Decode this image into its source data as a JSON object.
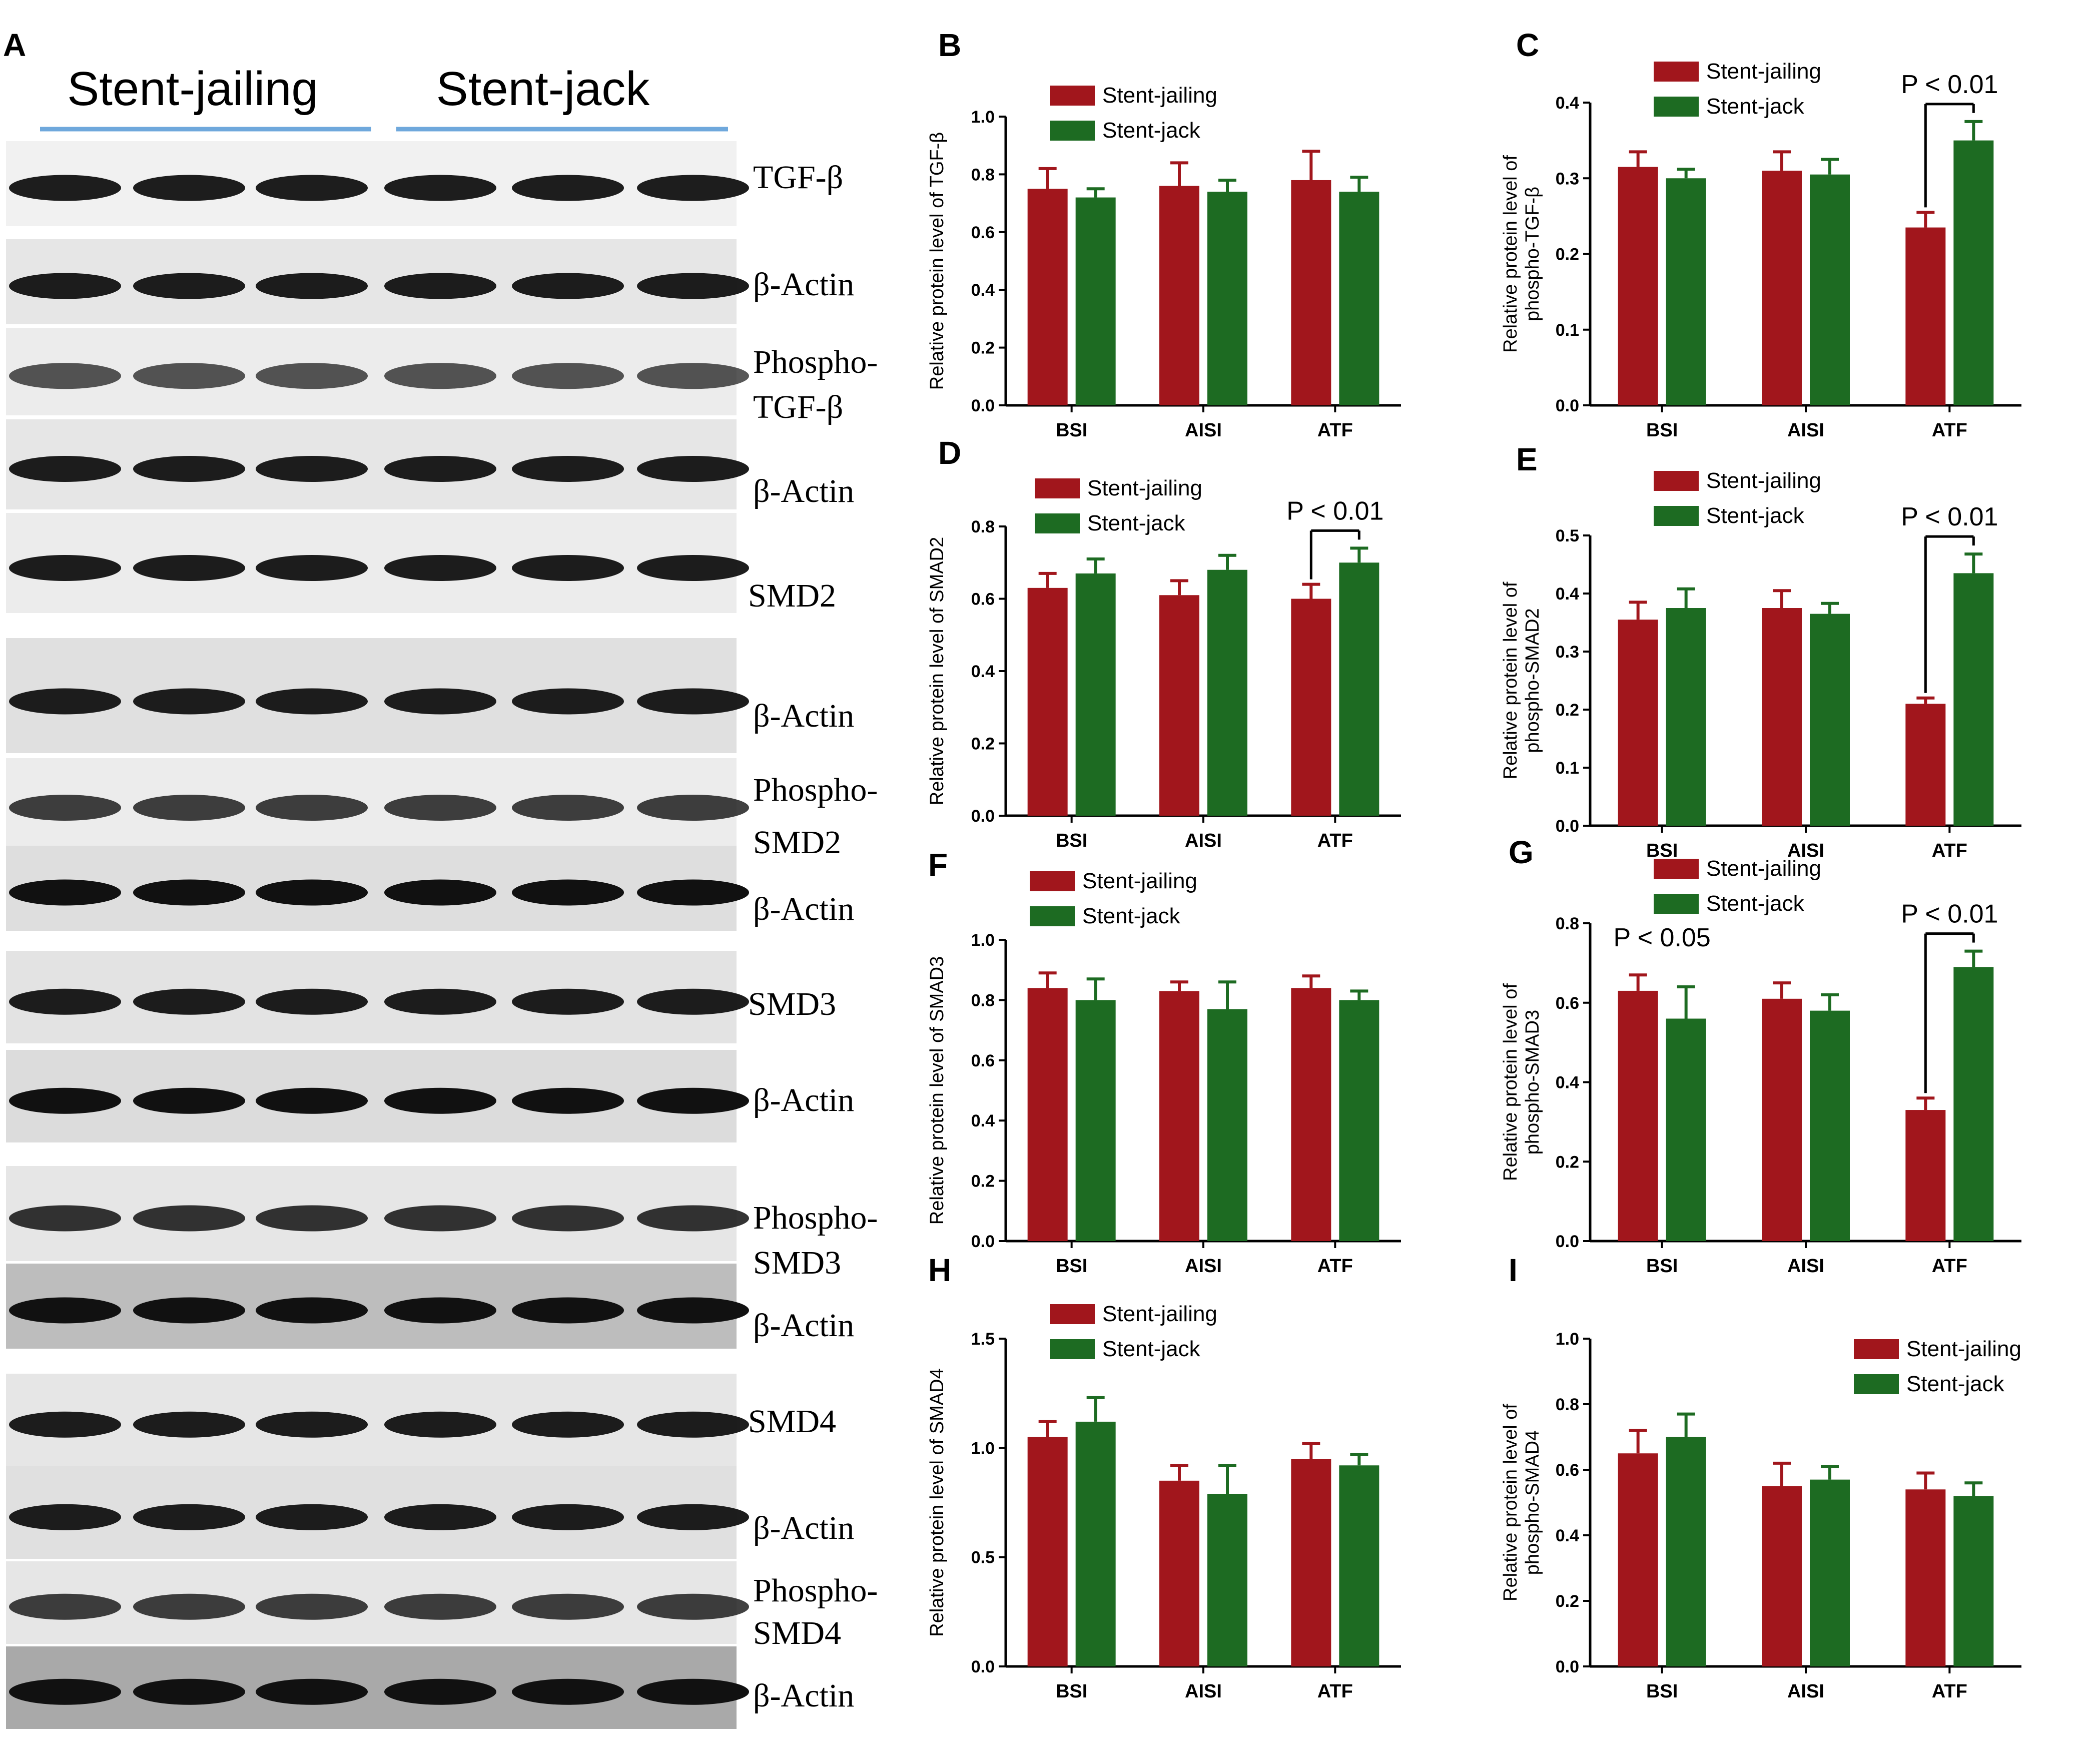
{
  "colors": {
    "jailing": "#a1161c",
    "jack": "#1d6b22",
    "axis": "#000000",
    "divider": "#6fa8dc"
  },
  "blot": {
    "letter": "A",
    "group_left": "Stent-jailing",
    "group_right": "Stent-jack",
    "labels": [
      "TGF-β",
      "β-Actin",
      "Phospho-",
      "TGF-β",
      "β-Actin",
      "SMD2",
      "β-Actin",
      "Phospho-",
      "SMD2",
      "β-Actin",
      "SMD3",
      "β-Actin",
      "Phospho-",
      "SMD3",
      "β-Actin",
      "SMD4",
      "β-Actin",
      "Phospho-",
      "SMD4",
      "β-Actin"
    ]
  },
  "chart_data": [
    {
      "panel": "B",
      "type": "bar",
      "categories": [
        "BSI",
        "AISI",
        "ATF"
      ],
      "ylabel_lines": [
        "Relative protein level of TGF-β"
      ],
      "ylim": [
        0,
        1.0
      ],
      "yticks": [
        "0.0",
        "0.2",
        "0.4",
        "0.6",
        "0.8",
        "1.0"
      ],
      "series": [
        {
          "name": "Stent-jailing",
          "values": [
            0.75,
            0.76,
            0.78
          ],
          "errors": [
            0.07,
            0.08,
            0.1
          ]
        },
        {
          "name": "Stent-jack",
          "values": [
            0.72,
            0.74,
            0.74
          ],
          "errors": [
            0.03,
            0.04,
            0.05
          ]
        }
      ],
      "annotations": []
    },
    {
      "panel": "C",
      "type": "bar",
      "categories": [
        "BSI",
        "AISI",
        "ATF"
      ],
      "ylabel_lines": [
        "Relative protein level of",
        "phospho-TGF-β"
      ],
      "ylim": [
        0,
        0.4
      ],
      "yticks": [
        "0.0",
        "0.1",
        "0.2",
        "0.3",
        "0.4"
      ],
      "series": [
        {
          "name": "Stent-jailing",
          "values": [
            0.315,
            0.31,
            0.235
          ],
          "errors": [
            0.02,
            0.025,
            0.02
          ]
        },
        {
          "name": "Stent-jack",
          "values": [
            0.3,
            0.305,
            0.35
          ],
          "errors": [
            0.012,
            0.02,
            0.025
          ]
        }
      ],
      "annotations": [
        {
          "text": "P < 0.01",
          "category": 2
        }
      ]
    },
    {
      "panel": "D",
      "type": "bar",
      "categories": [
        "BSI",
        "AISI",
        "ATF"
      ],
      "ylabel_lines": [
        "Relative protein level of SMAD2"
      ],
      "ylim": [
        0,
        0.8
      ],
      "yticks": [
        "0.0",
        "0.2",
        "0.4",
        "0.6",
        "0.8"
      ],
      "series": [
        {
          "name": "Stent-jailing",
          "values": [
            0.63,
            0.61,
            0.6
          ],
          "errors": [
            0.04,
            0.04,
            0.04
          ]
        },
        {
          "name": "Stent-jack",
          "values": [
            0.67,
            0.68,
            0.7
          ],
          "errors": [
            0.04,
            0.04,
            0.04
          ]
        }
      ],
      "annotations": [
        {
          "text": "P < 0.01",
          "category": 2
        }
      ]
    },
    {
      "panel": "E",
      "type": "bar",
      "categories": [
        "BSI",
        "AISI",
        "ATF"
      ],
      "ylabel_lines": [
        "Relative protein level of",
        "phospho-SMAD2"
      ],
      "ylim": [
        0,
        0.5
      ],
      "yticks": [
        "0.0",
        "0.1",
        "0.2",
        "0.3",
        "0.4",
        "0.5"
      ],
      "series": [
        {
          "name": "Stent-jailing",
          "values": [
            0.355,
            0.375,
            0.21
          ],
          "errors": [
            0.03,
            0.03,
            0.01
          ]
        },
        {
          "name": "Stent-jack",
          "values": [
            0.375,
            0.365,
            0.435
          ],
          "errors": [
            0.033,
            0.018,
            0.033
          ]
        }
      ],
      "annotations": [
        {
          "text": "P < 0.01",
          "category": 2
        }
      ]
    },
    {
      "panel": "F",
      "type": "bar",
      "categories": [
        "BSI",
        "AISI",
        "ATF"
      ],
      "ylabel_lines": [
        "Relative protein level of SMAD3"
      ],
      "ylim": [
        0,
        1.0
      ],
      "yticks": [
        "0.0",
        "0.2",
        "0.4",
        "0.6",
        "0.8",
        "1.0"
      ],
      "series": [
        {
          "name": "Stent-jailing",
          "values": [
            0.84,
            0.83,
            0.84
          ],
          "errors": [
            0.05,
            0.03,
            0.04
          ]
        },
        {
          "name": "Stent-jack",
          "values": [
            0.8,
            0.77,
            0.8
          ],
          "errors": [
            0.07,
            0.09,
            0.03
          ]
        }
      ],
      "annotations": []
    },
    {
      "panel": "G",
      "type": "bar",
      "categories": [
        "BSI",
        "AISI",
        "ATF"
      ],
      "ylabel_lines": [
        "Relative protein level of",
        "phospho-SMAD3"
      ],
      "ylim": [
        0,
        0.8
      ],
      "yticks": [
        "0.0",
        "0.2",
        "0.4",
        "0.6",
        "0.8"
      ],
      "series": [
        {
          "name": "Stent-jailing",
          "values": [
            0.63,
            0.61,
            0.33
          ],
          "errors": [
            0.04,
            0.04,
            0.03
          ]
        },
        {
          "name": "Stent-jack",
          "values": [
            0.56,
            0.58,
            0.69
          ],
          "errors": [
            0.08,
            0.04,
            0.04
          ]
        }
      ],
      "annotations": [
        {
          "text": "P < 0.05",
          "category": 0
        },
        {
          "text": "P < 0.01",
          "category": 2
        }
      ]
    },
    {
      "panel": "H",
      "type": "bar",
      "categories": [
        "BSI",
        "AISI",
        "ATF"
      ],
      "ylabel_lines": [
        "Relative protein level of SMAD4"
      ],
      "ylim": [
        0,
        1.5
      ],
      "yticks": [
        "0.0",
        "0.5",
        "1.0",
        "1.5"
      ],
      "series": [
        {
          "name": "Stent-jailing",
          "values": [
            1.05,
            0.85,
            0.95
          ],
          "errors": [
            0.07,
            0.07,
            0.07
          ]
        },
        {
          "name": "Stent-jack",
          "values": [
            1.12,
            0.79,
            0.92
          ],
          "errors": [
            0.11,
            0.13,
            0.05
          ]
        }
      ],
      "annotations": []
    },
    {
      "panel": "I",
      "type": "bar",
      "categories": [
        "BSI",
        "AISI",
        "ATF"
      ],
      "ylabel_lines": [
        "Relative protein level of",
        "phospho-SMAD4"
      ],
      "ylim": [
        0,
        1.0
      ],
      "yticks": [
        "0.0",
        "0.2",
        "0.4",
        "0.6",
        "0.8",
        "1.0"
      ],
      "series": [
        {
          "name": "Stent-jailing",
          "values": [
            0.65,
            0.55,
            0.54
          ],
          "errors": [
            0.07,
            0.07,
            0.05
          ]
        },
        {
          "name": "Stent-jack",
          "values": [
            0.7,
            0.57,
            0.52
          ],
          "errors": [
            0.07,
            0.04,
            0.04
          ]
        }
      ],
      "annotations": []
    }
  ]
}
